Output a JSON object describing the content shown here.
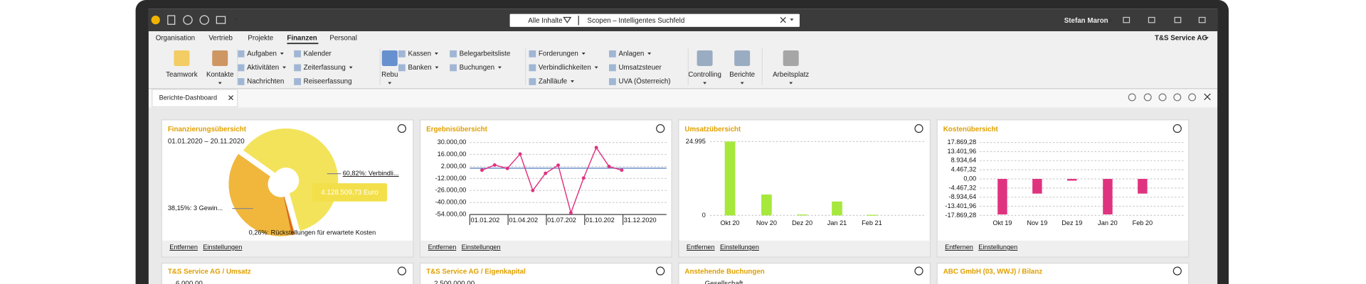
{
  "topbar": {
    "filter": "Alle Inhalte",
    "search": "Scopen – Intelligentes Suchfeld",
    "user": "Stefan Maron"
  },
  "menu": {
    "tabs": [
      "Organisation",
      "Vertrieb",
      "Projekte",
      "Finanzen",
      "Personal"
    ],
    "active": 3,
    "company": "T&S Service AG"
  },
  "ribbon": {
    "large": [
      "Teamwork",
      "Kontakte",
      "Rebu",
      "Controlling",
      "Berichte",
      "Arbeitsplatz"
    ],
    "small": [
      {
        "label": "Aufgaben",
        "menu": true
      },
      {
        "label": "Aktivitäten",
        "menu": true
      },
      {
        "label": "Nachrichten",
        "menu": false
      },
      {
        "label": "Kalender",
        "menu": false
      },
      {
        "label": "Zeiterfassung",
        "menu": true
      },
      {
        "label": "Reiseerfassung",
        "menu": false
      },
      {
        "label": "Kassen",
        "menu": true
      },
      {
        "label": "Banken",
        "menu": true
      },
      {
        "label": "Belegarbeitsliste",
        "menu": false
      },
      {
        "label": "Buchungen",
        "menu": true
      },
      {
        "label": "Forderungen",
        "menu": true
      },
      {
        "label": "Verbindlichkeiten",
        "menu": true
      },
      {
        "label": "Zahlläufe",
        "menu": true
      },
      {
        "label": "Anlagen",
        "menu": true
      },
      {
        "label": "Umsatzsteuer",
        "menu": false
      },
      {
        "label": "UVA (Österreich)",
        "menu": false
      }
    ]
  },
  "tab": "Berichte-Dashboard",
  "footer_links": [
    "Entfernen",
    "Einstellungen"
  ],
  "chart_data": [
    {
      "type": "pie",
      "title": "Finanzierungsübersicht",
      "subtitle": "01.01.2020 – 20.11.2020",
      "values": [
        60.82,
        0.26,
        0.77,
        38.15
      ],
      "value_labels": [
        "60,82%: Verbindli...",
        "0,26%: Rückstellungen für erwartete Kosten",
        null,
        "38,15%: 3 Gewin..."
      ],
      "colors": [
        "#f3e35a",
        "#e8951e",
        "#d9661a",
        "#f0b73c"
      ],
      "tooltip": "4.128.509,73 Euro"
    },
    {
      "type": "line",
      "title": "Ergebnisübersicht",
      "color": "#e0337f",
      "values": [
        -2300,
        3700,
        -300,
        16500,
        -26000,
        -6000,
        3500,
        -52000,
        -11500,
        24000,
        2000,
        -2300
      ],
      "xtick_labels": [
        "01.01.202",
        "01.04.202",
        "01.07.202",
        "01.10.202",
        "31.12.2020"
      ],
      "ylim": [
        -54000,
        30000
      ],
      "yticks": [
        {
          "value": 30000,
          "label": "30.000,00"
        },
        {
          "value": 16000,
          "label": "16.000,00"
        },
        {
          "value": 2000,
          "label": "2.000,00"
        },
        {
          "value": -12000,
          "label": "-12.000,00"
        },
        {
          "value": -26000,
          "label": "-26.000,00"
        },
        {
          "value": -40000,
          "label": "-40.000,00"
        },
        {
          "value": -54000,
          "label": "-54.000,00"
        }
      ],
      "grid": true
    },
    {
      "type": "bar",
      "title": "Umsatzübersicht",
      "color": "#a6e83c",
      "categories": [
        "Okt 20",
        "Nov 20",
        "Dez 20",
        "Jan 21",
        "Feb 21"
      ],
      "values": [
        24995,
        7060,
        300,
        4700,
        200
      ],
      "ylim": [
        0,
        24995
      ],
      "yticks": [
        {
          "value": 24995,
          "label": "24.995"
        },
        0
      ],
      "grid": true
    },
    {
      "type": "bar",
      "title": "Kostenübersicht",
      "color": "#e0337f",
      "categories": [
        "Okt 19",
        "Nov 19",
        "Dez 19",
        "Jan 20",
        "Feb 20"
      ],
      "values": [
        -17400,
        -7200,
        -850,
        -17400,
        -7200
      ],
      "ylim": [
        -17869.28,
        17869.28
      ],
      "yticks": [
        {
          "value": 17869.28,
          "label": "17.869,28"
        },
        {
          "value": 13401.96,
          "label": "13.401,96"
        },
        {
          "value": 8934.64,
          "label": "8.934,64"
        },
        {
          "value": 4467.32,
          "label": "4.467,32"
        },
        {
          "value": 0,
          "label": "0,00"
        },
        {
          "value": -4467.32,
          "label": "-4.467,32"
        },
        {
          "value": -8934.64,
          "label": "-8.934,64"
        },
        {
          "value": -13401.96,
          "label": "-13.401,96"
        },
        {
          "value": -17869.28,
          "label": "-17.869,28"
        }
      ],
      "grid": true
    }
  ],
  "row2": [
    {
      "title": "T&S Service AG / Umsatz",
      "text": "6.000,00"
    },
    {
      "title": "T&S Service AG / Eigenkapital",
      "text": "2.500.000,00"
    },
    {
      "title": "Anstehende Buchungen",
      "text": "Gesellschaft"
    },
    {
      "title": "ABC GmbH (03, WWJ) / Bilanz",
      "text": null
    }
  ]
}
